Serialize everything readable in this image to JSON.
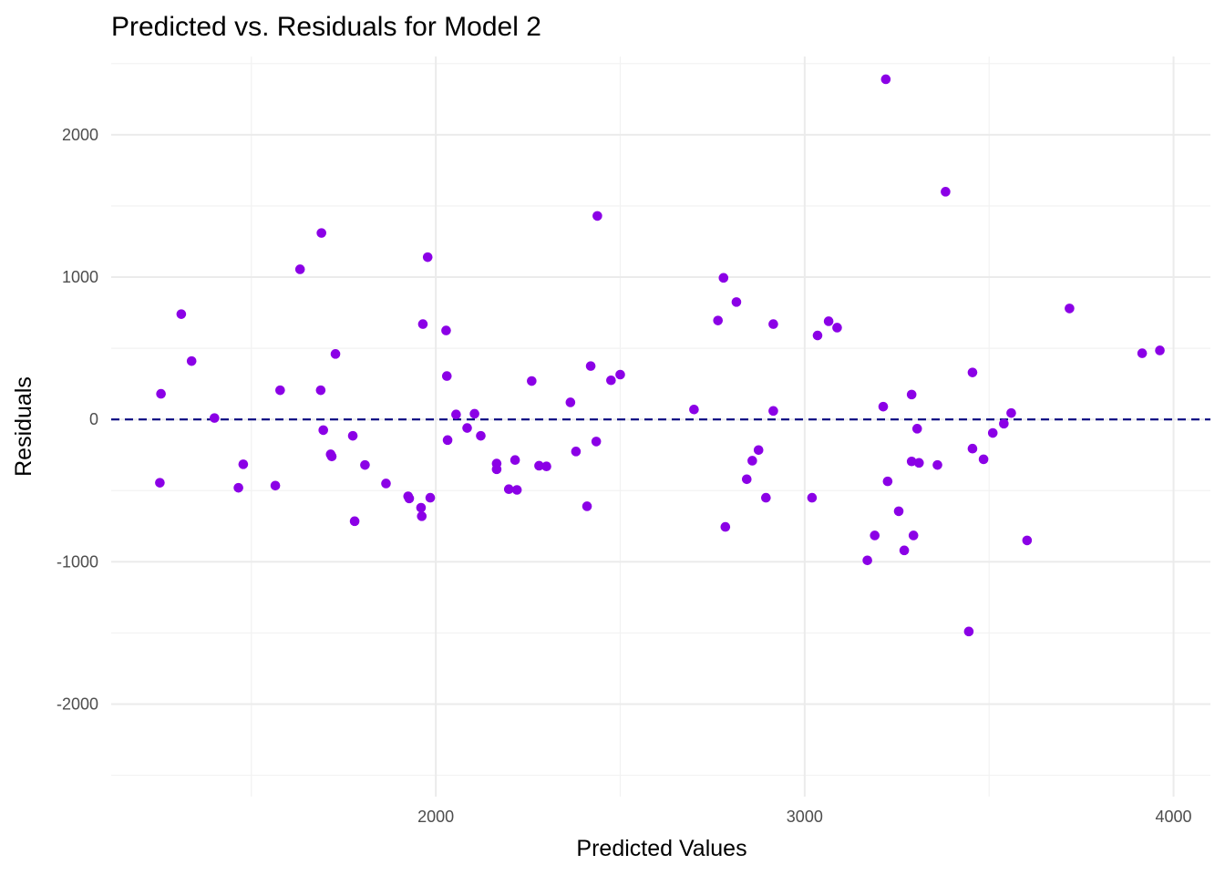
{
  "chart_data": {
    "type": "scatter",
    "title": "Predicted vs. Residuals for Model 2",
    "xlabel": "Predicted Values",
    "ylabel": "Residuals",
    "xlim": [
      1120,
      4100
    ],
    "ylim": [
      -2650,
      2550
    ],
    "x_ticks": [
      2000,
      3000,
      4000
    ],
    "x_minor_ticks": [
      1500,
      2500,
      3500
    ],
    "y_ticks": [
      -2000,
      -1000,
      0,
      1000,
      2000
    ],
    "y_minor_ticks": [
      -2500,
      -1500,
      -500,
      500,
      1500,
      2500
    ],
    "grid": true,
    "point_color": "#8B00E6",
    "reference_line": {
      "y": 0,
      "style": "dashed",
      "color": "#000080"
    },
    "points": [
      {
        "x": 1255,
        "y": 180
      },
      {
        "x": 1252,
        "y": -445
      },
      {
        "x": 1310,
        "y": 740
      },
      {
        "x": 1338,
        "y": 410
      },
      {
        "x": 1400,
        "y": 10
      },
      {
        "x": 1465,
        "y": -480
      },
      {
        "x": 1478,
        "y": -315
      },
      {
        "x": 1565,
        "y": -465
      },
      {
        "x": 1578,
        "y": 205
      },
      {
        "x": 1632,
        "y": 1055
      },
      {
        "x": 1690,
        "y": 1310
      },
      {
        "x": 1688,
        "y": 205
      },
      {
        "x": 1695,
        "y": -75
      },
      {
        "x": 1715,
        "y": -245
      },
      {
        "x": 1718,
        "y": -260
      },
      {
        "x": 1728,
        "y": 460
      },
      {
        "x": 1775,
        "y": -115
      },
      {
        "x": 1780,
        "y": -715
      },
      {
        "x": 1808,
        "y": -320
      },
      {
        "x": 1865,
        "y": -450
      },
      {
        "x": 1925,
        "y": -540
      },
      {
        "x": 1928,
        "y": -555
      },
      {
        "x": 1960,
        "y": -620
      },
      {
        "x": 1962,
        "y": -680
      },
      {
        "x": 1965,
        "y": 670
      },
      {
        "x": 1978,
        "y": 1140
      },
      {
        "x": 1985,
        "y": -550
      },
      {
        "x": 2028,
        "y": 625
      },
      {
        "x": 2030,
        "y": 305
      },
      {
        "x": 2032,
        "y": -145
      },
      {
        "x": 2055,
        "y": 35
      },
      {
        "x": 2085,
        "y": -60
      },
      {
        "x": 2105,
        "y": 40
      },
      {
        "x": 2122,
        "y": -115
      },
      {
        "x": 2165,
        "y": -310
      },
      {
        "x": 2165,
        "y": -350
      },
      {
        "x": 2198,
        "y": -490
      },
      {
        "x": 2215,
        "y": -285
      },
      {
        "x": 2220,
        "y": -495
      },
      {
        "x": 2260,
        "y": 270
      },
      {
        "x": 2280,
        "y": -325
      },
      {
        "x": 2300,
        "y": -330
      },
      {
        "x": 2365,
        "y": 120
      },
      {
        "x": 2380,
        "y": -225
      },
      {
        "x": 2410,
        "y": -610
      },
      {
        "x": 2420,
        "y": 375
      },
      {
        "x": 2435,
        "y": -155
      },
      {
        "x": 2438,
        "y": 1430
      },
      {
        "x": 2475,
        "y": 275
      },
      {
        "x": 2500,
        "y": 315
      },
      {
        "x": 2700,
        "y": 70
      },
      {
        "x": 2765,
        "y": 695
      },
      {
        "x": 2780,
        "y": 995
      },
      {
        "x": 2785,
        "y": -755
      },
      {
        "x": 2815,
        "y": 825
      },
      {
        "x": 2843,
        "y": -420
      },
      {
        "x": 2858,
        "y": -290
      },
      {
        "x": 2875,
        "y": -215
      },
      {
        "x": 2895,
        "y": -550
      },
      {
        "x": 2915,
        "y": 670
      },
      {
        "x": 2915,
        "y": 60
      },
      {
        "x": 3020,
        "y": -550
      },
      {
        "x": 3035,
        "y": 590
      },
      {
        "x": 3065,
        "y": 690
      },
      {
        "x": 3088,
        "y": 645
      },
      {
        "x": 3170,
        "y": -990
      },
      {
        "x": 3190,
        "y": -815
      },
      {
        "x": 3213,
        "y": 90
      },
      {
        "x": 3220,
        "y": 2390
      },
      {
        "x": 3225,
        "y": -435
      },
      {
        "x": 3255,
        "y": -645
      },
      {
        "x": 3270,
        "y": -920
      },
      {
        "x": 3290,
        "y": 175
      },
      {
        "x": 3290,
        "y": -295
      },
      {
        "x": 3295,
        "y": -815
      },
      {
        "x": 3305,
        "y": -65
      },
      {
        "x": 3310,
        "y": -305
      },
      {
        "x": 3360,
        "y": -320
      },
      {
        "x": 3382,
        "y": 1600
      },
      {
        "x": 3445,
        "y": -1490
      },
      {
        "x": 3455,
        "y": 330
      },
      {
        "x": 3455,
        "y": -205
      },
      {
        "x": 3485,
        "y": -280
      },
      {
        "x": 3510,
        "y": -95
      },
      {
        "x": 3540,
        "y": -30
      },
      {
        "x": 3560,
        "y": 45
      },
      {
        "x": 3603,
        "y": -850
      },
      {
        "x": 3718,
        "y": 780
      },
      {
        "x": 3915,
        "y": 465
      },
      {
        "x": 3963,
        "y": 485
      }
    ]
  }
}
